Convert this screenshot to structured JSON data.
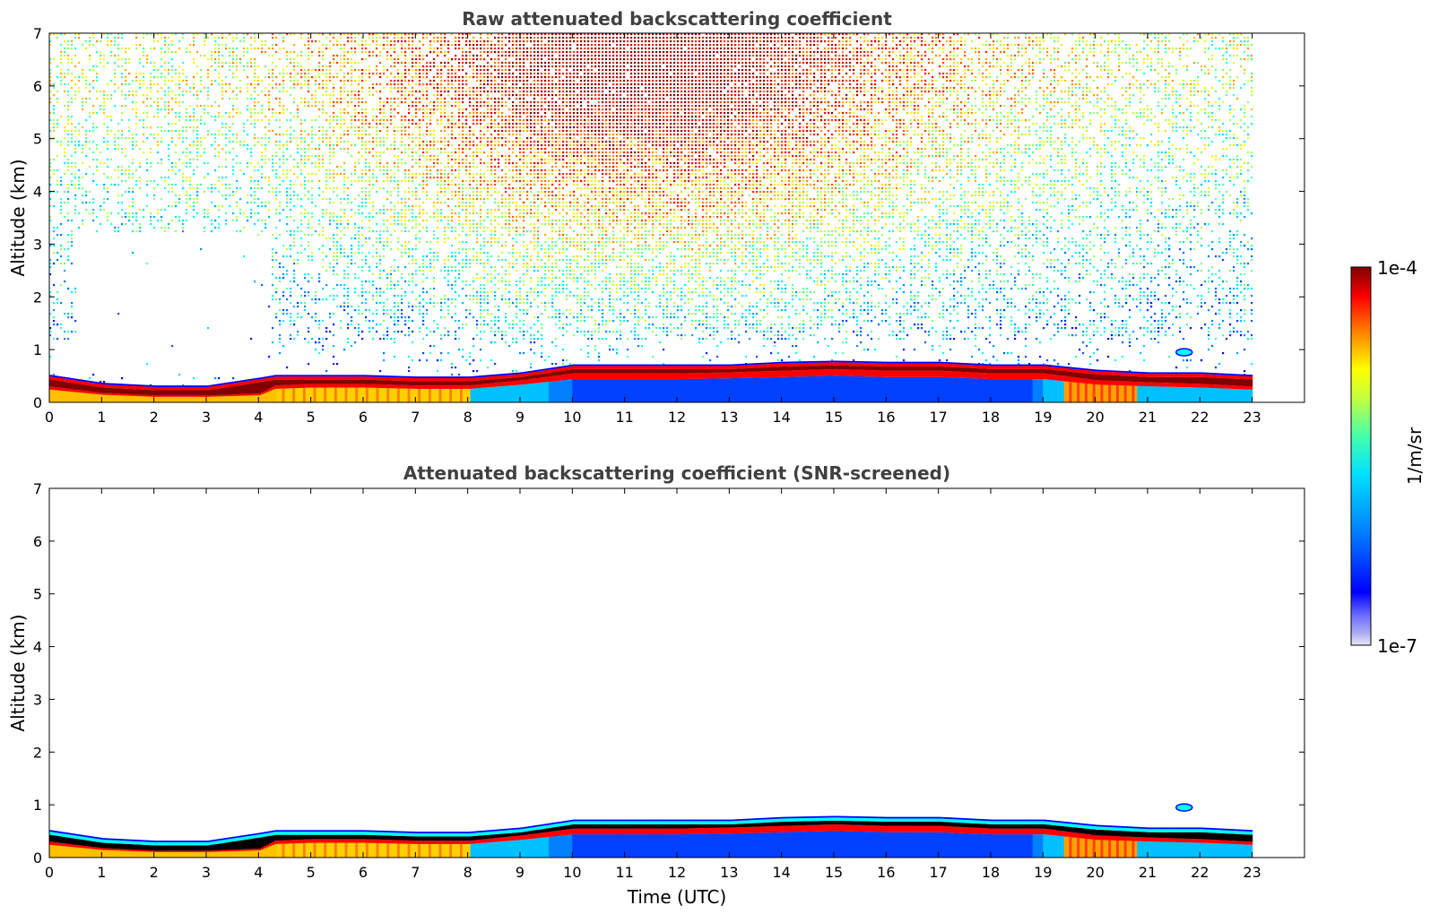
{
  "chart_data": [
    {
      "type": "heatmap",
      "title": "Raw attenuated backscattering coefficient",
      "xlabel": "",
      "ylabel": "Altitude (km)",
      "xlim": [
        0,
        24
      ],
      "ylim": [
        0,
        7
      ],
      "x_ticks": [
        "0",
        "1",
        "2",
        "3",
        "4",
        "5",
        "6",
        "7",
        "8",
        "9",
        "10",
        "11",
        "12",
        "13",
        "14",
        "15",
        "16",
        "17",
        "18",
        "19",
        "20",
        "21",
        "22",
        "23"
      ],
      "y_ticks": [
        "0",
        "1",
        "2",
        "3",
        "4",
        "5",
        "6",
        "7"
      ],
      "data_time_range": [
        0,
        23
      ],
      "boundary_layer_top_km": [
        [
          0,
          0.45
        ],
        [
          1,
          0.3
        ],
        [
          2,
          0.25
        ],
        [
          3,
          0.25
        ],
        [
          4,
          0.4
        ],
        [
          4.3,
          0.45
        ],
        [
          5,
          0.45
        ],
        [
          6,
          0.45
        ],
        [
          7,
          0.42
        ],
        [
          8,
          0.42
        ],
        [
          9,
          0.5
        ],
        [
          10,
          0.65
        ],
        [
          11,
          0.65
        ],
        [
          12,
          0.65
        ],
        [
          13,
          0.65
        ],
        [
          14,
          0.7
        ],
        [
          15,
          0.72
        ],
        [
          16,
          0.7
        ],
        [
          17,
          0.7
        ],
        [
          18,
          0.65
        ],
        [
          19,
          0.65
        ],
        [
          20,
          0.55
        ],
        [
          21,
          0.5
        ],
        [
          22,
          0.5
        ],
        [
          23,
          0.45
        ]
      ],
      "aerosol_layer_bottom_km": [
        [
          0,
          0.3
        ],
        [
          1,
          0.18
        ],
        [
          2,
          0.13
        ],
        [
          3,
          0.13
        ],
        [
          4,
          0.17
        ],
        [
          4.3,
          0.32
        ],
        [
          5,
          0.35
        ],
        [
          6,
          0.35
        ],
        [
          7,
          0.32
        ],
        [
          8,
          0.32
        ],
        [
          9,
          0.42
        ],
        [
          10,
          0.55
        ],
        [
          11,
          0.55
        ],
        [
          12,
          0.55
        ],
        [
          13,
          0.57
        ],
        [
          14,
          0.6
        ],
        [
          15,
          0.63
        ],
        [
          16,
          0.6
        ],
        [
          17,
          0.6
        ],
        [
          18,
          0.55
        ],
        [
          19,
          0.55
        ],
        [
          20,
          0.42
        ],
        [
          21,
          0.38
        ],
        [
          22,
          0.35
        ],
        [
          23,
          0.3
        ]
      ],
      "clear_region": {
        "t_start": 0.5,
        "t_end": 4.2,
        "alt_low_km": 0.6,
        "alt_high_km": 3.2
      },
      "elevated_feature": {
        "t": 21.7,
        "alt_km": 0.95
      }
    },
    {
      "type": "heatmap",
      "title": "Attenuated backscattering coefficient (SNR-screened)",
      "xlabel": "Time (UTC)",
      "ylabel": "Altitude (km)",
      "xlim": [
        0,
        24
      ],
      "ylim": [
        0,
        7
      ],
      "x_ticks": [
        "0",
        "1",
        "2",
        "3",
        "4",
        "5",
        "6",
        "7",
        "8",
        "9",
        "10",
        "11",
        "12",
        "13",
        "14",
        "15",
        "16",
        "17",
        "18",
        "19",
        "20",
        "21",
        "22",
        "23"
      ],
      "y_ticks": [
        "0",
        "1",
        "2",
        "3",
        "4",
        "5",
        "6",
        "7"
      ],
      "data_time_range": [
        0,
        23
      ],
      "elevated_feature": {
        "t": 21.7,
        "alt_km": 0.95
      }
    }
  ],
  "colorbar": {
    "label": "1/m/sr",
    "max_label": "1e-4",
    "min_label": "1e-7",
    "scale": "log",
    "colormap": "jet"
  },
  "colors": {
    "dark_red": "#800000",
    "red": "#ff0000",
    "yellow": "#ffff00",
    "cyan": "#00ffff",
    "blue": "#0000ff",
    "navy": "#00008f",
    "black": "#000000"
  }
}
